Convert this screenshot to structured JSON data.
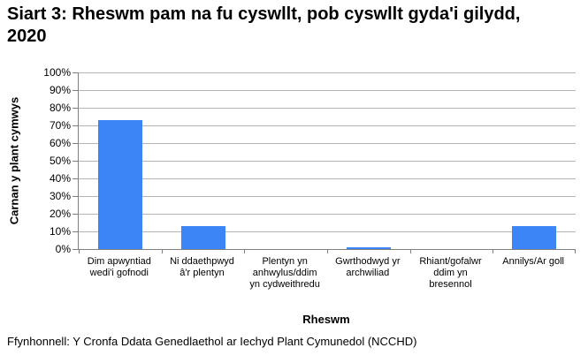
{
  "chart_data": {
    "type": "bar",
    "title": "Siart 3: Rheswm pam na fu cyswllt, pob cyswllt gyda'i gilydd, 2020",
    "xlabel": "Rheswm",
    "ylabel": "Carnan y plant cymwys",
    "categories": [
      "Dim apwyntiad wedi'i gofnodi",
      "Ni ddaethpwyd â'r plentyn",
      "Plentyn yn anhwylus/ddim yn cydweithredu",
      "Gwrthodwyd yr archwiliad",
      "Rhiant/gofalwr ddim yn bresennol",
      "Annilys/Ar goll"
    ],
    "values": [
      73,
      13,
      0,
      1,
      0,
      13
    ],
    "unit": "%",
    "ylim": [
      0,
      100
    ],
    "ytick_step": 10,
    "ytick_labels": [
      "0%",
      "10%",
      "20%",
      "30%",
      "40%",
      "50%",
      "60%",
      "70%",
      "80%",
      "90%",
      "100%"
    ],
    "grid": true,
    "legend": "none",
    "bar_color": "#3c85f7",
    "grid_color": "#b3b3b3",
    "axis_color": "#808080"
  },
  "footer": "Ffynhonnell: Y Cronfa Ddata Genedlaethol ar Iechyd Plant Cymunedol (NCCHD)"
}
